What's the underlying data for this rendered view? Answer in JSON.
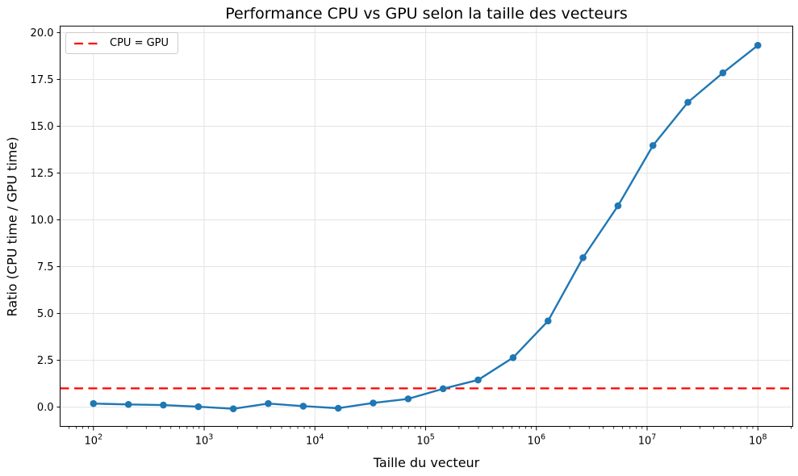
{
  "chart_data": {
    "type": "line",
    "title": "Performance CPU vs GPU selon la taille des vecteurs",
    "xlabel": "Taille du vecteur",
    "ylabel": "Ratio (CPU time / GPU time)",
    "x_scale": "log",
    "xlim": [
      50,
      206600000
    ],
    "ylim": [
      -1.03,
      20.35
    ],
    "grid": true,
    "x_ticks": [
      {
        "value": 100,
        "exponent": "2"
      },
      {
        "value": 1000,
        "exponent": "3"
      },
      {
        "value": 10000,
        "exponent": "4"
      },
      {
        "value": 100000,
        "exponent": "5"
      },
      {
        "value": 1000000,
        "exponent": "6"
      },
      {
        "value": 10000000,
        "exponent": "7"
      },
      {
        "value": 100000000,
        "exponent": "8"
      }
    ],
    "y_ticks": [
      {
        "value": 0,
        "label": "0.0"
      },
      {
        "value": 2.5,
        "label": "2.5"
      },
      {
        "value": 5,
        "label": "5.0"
      },
      {
        "value": 7.5,
        "label": "7.5"
      },
      {
        "value": 10,
        "label": "10.0"
      },
      {
        "value": 12.5,
        "label": "12.5"
      },
      {
        "value": 15,
        "label": "15.0"
      },
      {
        "value": 17.5,
        "label": "17.5"
      },
      {
        "value": 20,
        "label": "20.0"
      }
    ],
    "series": [
      {
        "color": "#1f77b4",
        "marker": "circle",
        "x": [
          100,
          207,
          428,
          886,
          1833,
          3793,
          7848,
          16238,
          33598,
          69519,
          143845,
          297635,
          615848,
          1274275,
          2636651,
          5455595,
          11288379,
          23357215,
          48329302,
          100000000
        ],
        "y": [
          0.19,
          0.14,
          0.11,
          0.02,
          -0.09,
          0.19,
          0.05,
          -0.06,
          0.22,
          0.44,
          0.98,
          1.45,
          2.64,
          4.6,
          7.98,
          10.75,
          13.97,
          16.28,
          17.85,
          19.32
        ]
      }
    ],
    "reference_line": {
      "y": 1.0,
      "color": "#ff0000",
      "style": "dashed",
      "label": "CPU = GPU"
    },
    "legend": {
      "position": "upper left",
      "entries": [
        {
          "label": "CPU = GPU",
          "color": "#ff0000",
          "linestyle": "dashed"
        }
      ]
    },
    "colors": {
      "grid": "#e3e3e3",
      "spine": "#000000",
      "background": "#ffffff"
    }
  }
}
